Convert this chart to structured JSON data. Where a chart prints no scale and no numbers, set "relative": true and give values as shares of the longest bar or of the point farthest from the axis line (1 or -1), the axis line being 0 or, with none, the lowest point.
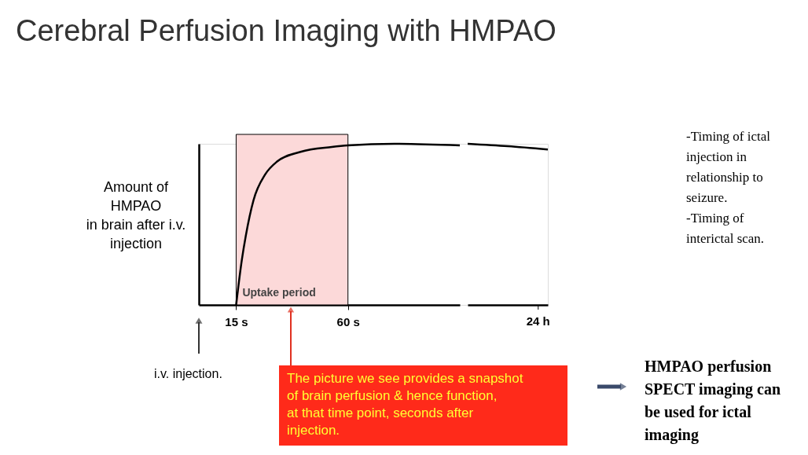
{
  "chart_data": [
    {
      "type": "line",
      "relative": true,
      "title": "Cerebral Perfusion Imaging with HMPAO",
      "ylabel": "Amount of\nHMPAO\nin brain after i.v.\ninjection",
      "x": [
        15,
        17.3,
        18.9,
        22,
        26.7,
        31.5,
        40.9,
        53.5,
        60,
        78.7,
        105
      ],
      "series": [
        {
          "color": "#000000",
          "values": [
            0,
            0.28,
            0.43,
            0.65,
            0.81,
            0.89,
            0.95,
            0.98,
            0.99,
            1.0,
            0.99
          ]
        }
      ],
      "xlim": [
        0,
        105
      ],
      "xticks": [
        {
          "value": 15,
          "label": "15 s"
        },
        {
          "value": 60,
          "label": "60 s"
        }
      ],
      "bands": [
        {
          "axis": "x",
          "from": 15,
          "to": 60,
          "label": "Uptake period",
          "color": "#fcd9d9"
        }
      ],
      "annotations": [
        "i.v. injection.",
        "The picture we see provides a snapshot\nof brain perfusion & hence function,\nat that time point, seconds after\ninjection.",
        "-Timing of ictal\ninjection in\nrelationship to\nseizure.\n-Timing of\ninterictal scan.",
        "HMPAO perfusion\nSPECT imaging can\nbe used for ictal\nimaging"
      ],
      "marker": "none",
      "line_style": "solid"
    },
    {
      "type": "line",
      "relative": true,
      "categories": [
        null,
        null,
        null
      ],
      "series": [
        {
          "color": "#000000",
          "values": [
            1.0,
            0.985,
            0.965
          ]
        }
      ],
      "annotations": [
        "24 h"
      ],
      "marker": "none",
      "line_style": "solid"
    }
  ]
}
